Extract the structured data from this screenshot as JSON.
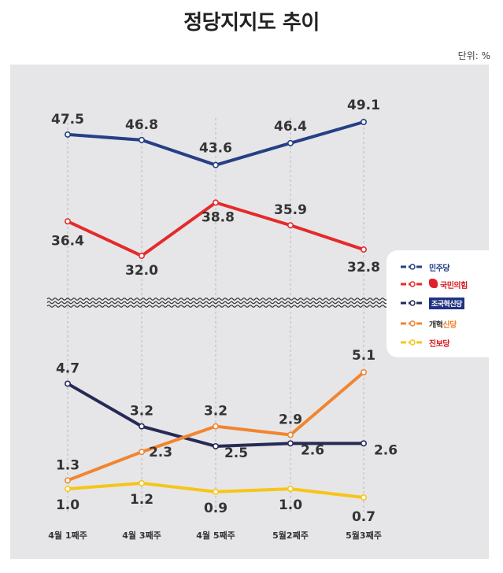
{
  "title": "정당지지도 추이",
  "unit": "단위: %",
  "colors": {
    "democratic": "#263f86",
    "ppp": "#e52a2a",
    "rebuilding": "#262b55",
    "reform": "#f18530",
    "progressive": "#f6c519"
  },
  "chart_data": {
    "type": "line",
    "title": "정당지지도 추이",
    "categories": [
      "4월 1째주",
      "4월 3째주",
      "4월 5째주",
      "5월2째주",
      "5월3째주"
    ],
    "axis_break": true,
    "series": [
      {
        "key": "democratic",
        "name": "민주당",
        "values": [
          47.5,
          46.8,
          43.6,
          46.4,
          49.1
        ]
      },
      {
        "key": "ppp",
        "name": "국민의힘",
        "values": [
          36.4,
          32.0,
          38.8,
          35.9,
          32.8
        ]
      },
      {
        "key": "rebuilding",
        "name": "조국혁신당",
        "values": [
          4.7,
          3.2,
          2.5,
          2.6,
          2.6
        ]
      },
      {
        "key": "reform",
        "name": "개혁신당",
        "values": [
          1.3,
          2.3,
          3.2,
          2.9,
          5.1
        ]
      },
      {
        "key": "progressive",
        "name": "진보당",
        "values": [
          1.0,
          1.2,
          0.9,
          1.0,
          0.7
        ]
      }
    ],
    "data_labels": {
      "democratic": [
        "47.5",
        "46.8",
        "43.6",
        "46.4",
        "49.1"
      ],
      "ppp": [
        "36.4",
        "32.0",
        "38.8",
        "35.9",
        "32.8"
      ],
      "rebuilding": [
        "4.7",
        "3.2",
        "2.5",
        "2.6",
        "2.6"
      ],
      "reform": [
        "1.3",
        "2.3",
        "3.2",
        "2.9",
        "5.1"
      ],
      "progressive": [
        "1.0",
        "1.2",
        "0.9",
        "1.0",
        "0.7"
      ]
    },
    "legend": "right"
  },
  "legend": {
    "democratic": "민주당",
    "ppp": "국민의힘",
    "rebuilding": "조국혁신당",
    "reform_prefix": "개혁",
    "reform_accent": "신당",
    "progressive": "진보당"
  }
}
